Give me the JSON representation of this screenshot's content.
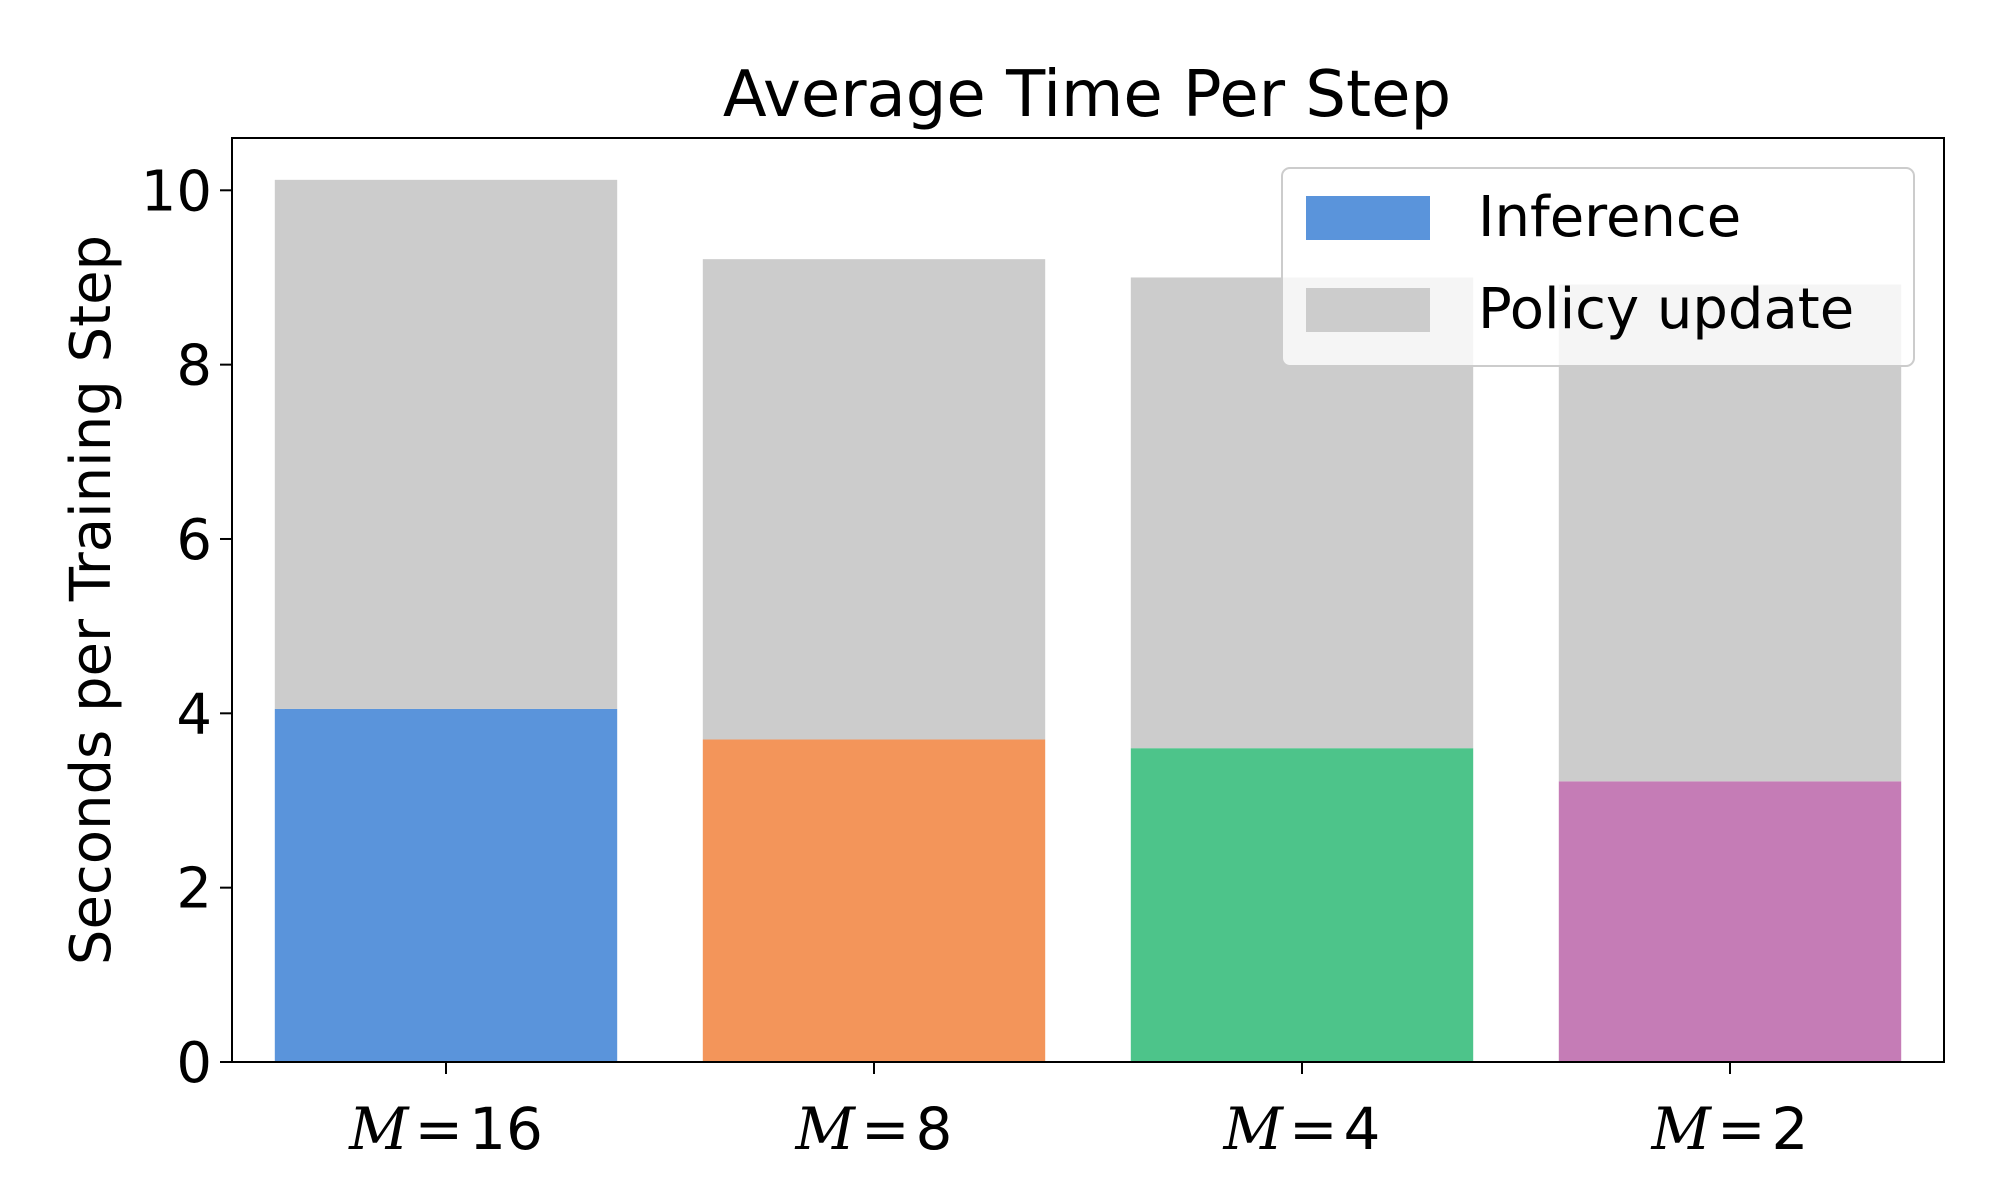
{
  "chart_data": {
    "type": "bar",
    "stacked": true,
    "title": "Average Time Per Step",
    "ylabel": "Seconds per Training Step",
    "xlabel": "",
    "ylim": [
      0,
      10.6
    ],
    "yticks": [
      0,
      2,
      4,
      6,
      8,
      10
    ],
    "categories": [
      {
        "var": "M",
        "eq": "=",
        "num": "16"
      },
      {
        "var": "M",
        "eq": "=",
        "num": "8"
      },
      {
        "var": "M",
        "eq": "=",
        "num": "4"
      },
      {
        "var": "M",
        "eq": "=",
        "num": "2"
      }
    ],
    "series": [
      {
        "name": "Inference",
        "values": [
          4.05,
          3.7,
          3.6,
          3.22
        ],
        "colors": [
          "#5A94DB",
          "#F3955A",
          "#4DC48A",
          "#C57CB6"
        ]
      },
      {
        "name": "Policy update",
        "values": [
          6.07,
          5.51,
          5.4,
          5.7
        ],
        "colors": [
          "#CCCCCC",
          "#CCCCCC",
          "#CCCCCC",
          "#CCCCCC"
        ]
      }
    ],
    "legend": {
      "placement": "top-right",
      "entries": [
        {
          "label": "Inference",
          "color": "#5A94DB"
        },
        {
          "label": "Policy update",
          "color": "#CCCCCC"
        }
      ]
    },
    "grid": false
  }
}
